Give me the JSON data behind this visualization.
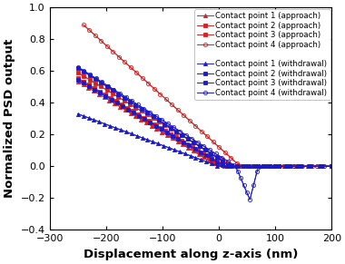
{
  "xlabel": "Displacement along z-axis (nm)",
  "ylabel": "Normalized PSD output",
  "xlim": [
    -300,
    200
  ],
  "ylim": [
    -0.4,
    1.0
  ],
  "xticks": [
    -300,
    -200,
    -100,
    0,
    100,
    200
  ],
  "yticks": [
    -0.4,
    -0.2,
    0.0,
    0.2,
    0.4,
    0.6,
    0.8,
    1.0
  ],
  "approach_color": "#d42020",
  "withdrawal_color": "#1a1acc",
  "axis_label_fontsize": 9.5,
  "tick_fontsize": 8,
  "legend_fontsize": 6.2,
  "approach_curves": [
    {
      "x_start": -250,
      "y_start": 0.535,
      "contact_x": -5,
      "contact_y": 0.01,
      "marker": "^",
      "filled": true,
      "ms": 3.0
    },
    {
      "x_start": -250,
      "y_start": 0.555,
      "contact_x": 5,
      "contact_y": 0.01,
      "marker": "s",
      "filled": true,
      "ms": 2.8
    },
    {
      "x_start": -250,
      "y_start": 0.59,
      "contact_x": 20,
      "contact_y": 0.01,
      "marker": "s",
      "filled": true,
      "ms": 2.8
    },
    {
      "x_start": -240,
      "y_start": 0.89,
      "contact_x": 35,
      "contact_y": 0.01,
      "marker": "o",
      "filled": false,
      "ms": 3.0
    }
  ],
  "withdrawal_curves": [
    {
      "x_start": -250,
      "y_start": 0.33,
      "contact_x": 0,
      "contact_y": 0.0,
      "snap_x": null,
      "snap_y": null,
      "marker": "^",
      "filled": true,
      "ms": 3.0
    },
    {
      "x_start": -250,
      "y_start": 0.545,
      "contact_x": 10,
      "contact_y": 0.0,
      "snap_x": null,
      "snap_y": null,
      "marker": "s",
      "filled": true,
      "ms": 2.8
    },
    {
      "x_start": -250,
      "y_start": 0.62,
      "contact_x": 20,
      "contact_y": 0.0,
      "snap_x": null,
      "snap_y": null,
      "marker": "s",
      "filled": true,
      "ms": 2.8
    },
    {
      "x_start": -250,
      "y_start": 0.625,
      "contact_x": 30,
      "contact_y": 0.0,
      "snap_x": 55,
      "snap_y": -0.21,
      "marker": "o",
      "filled": false,
      "ms": 3.0
    }
  ]
}
